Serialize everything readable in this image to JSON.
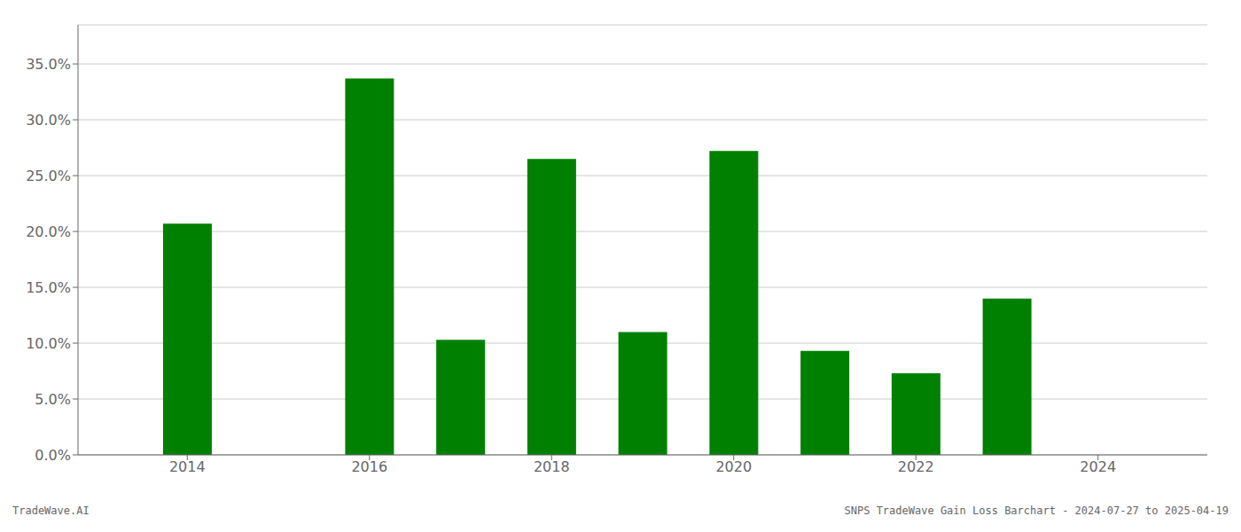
{
  "chart_data": {
    "type": "bar",
    "x": [
      2014,
      2016,
      2017,
      2018,
      2019,
      2020,
      2021,
      2022,
      2023
    ],
    "values": [
      0.207,
      0.337,
      0.103,
      0.265,
      0.11,
      0.272,
      0.093,
      0.073,
      0.14
    ],
    "color": "#008000",
    "xlim": [
      2012.8,
      2025.2
    ],
    "xticks": [
      2014,
      2016,
      2018,
      2020,
      2022,
      2024
    ],
    "ylim": [
      0,
      0.385
    ],
    "yticks": [
      {
        "value": 0.0,
        "label": "0.0%"
      },
      {
        "value": 0.05,
        "label": "5.0%"
      },
      {
        "value": 0.1,
        "label": "10.0%"
      },
      {
        "value": 0.15,
        "label": "15.0%"
      },
      {
        "value": 0.2,
        "label": "20.0%"
      },
      {
        "value": 0.25,
        "label": "25.0%"
      },
      {
        "value": 0.3,
        "label": "30.0%"
      },
      {
        "value": 0.35,
        "label": "35.0%"
      }
    ],
    "grid": true,
    "annotations": [
      "TradeWave.AI",
      "SNPS TradeWave Gain Loss Barchart - 2024-07-27 to 2025-04-19"
    ]
  }
}
